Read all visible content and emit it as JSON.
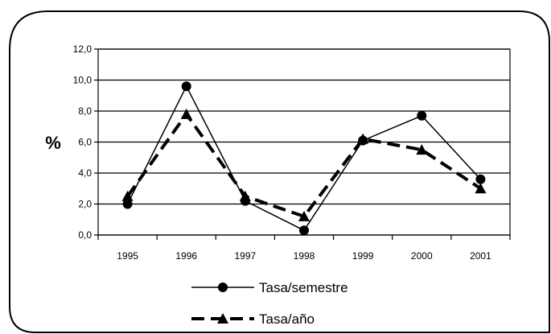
{
  "chart_data": {
    "type": "line",
    "title": "",
    "xlabel": "",
    "ylabel": "%",
    "categories": [
      "1995",
      "1996",
      "1997",
      "1998",
      "1999",
      "2000",
      "2001"
    ],
    "ylim": [
      0,
      12
    ],
    "yticks": [
      "0,0",
      "2,0",
      "4,0",
      "6,0",
      "8,0",
      "10,0",
      "12,0"
    ],
    "grid": true,
    "legend_position": "bottom",
    "series": [
      {
        "name": "Tasa/semestre",
        "values": [
          2.0,
          9.6,
          2.2,
          0.3,
          6.1,
          7.7,
          3.6
        ],
        "style": "solid-thin",
        "marker": "circle",
        "color": "#000000"
      },
      {
        "name": "Tasa/año",
        "values": [
          2.5,
          7.8,
          2.5,
          1.2,
          6.2,
          5.5,
          3.0
        ],
        "style": "dashed-thick",
        "marker": "triangle",
        "color": "#000000"
      }
    ]
  }
}
